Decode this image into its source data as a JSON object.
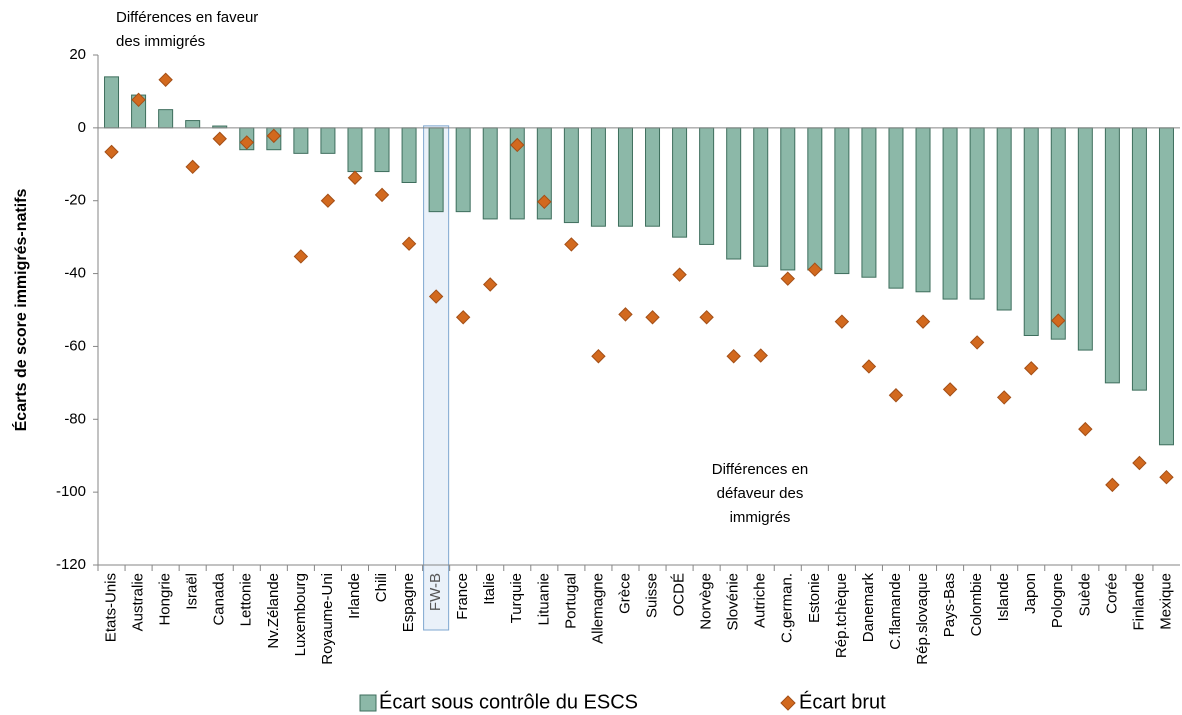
{
  "chart_data": {
    "type": "bar",
    "y_label": "Écarts de score immigrés-natifs",
    "annotations": [
      [
        "Différences en faveur",
        "des immigrés"
      ],
      [
        "Différences en",
        "défaveur des",
        "immigrés"
      ]
    ],
    "categories": [
      "Etats-Unis",
      "Australie",
      "Hongrie",
      "Israël",
      "Canada",
      "Lettonie",
      "Nv.Zélande",
      "Luxembourg",
      "Royaume-Uni",
      "Irlande",
      "Chili",
      "Espagne",
      "FW-B",
      "France",
      "Italie",
      "Turquie",
      "Lituanie",
      "Portugal",
      "Allemagne",
      "Grèce",
      "Suisse",
      "OCDÉ",
      "Norvège",
      "Slovénie",
      "Autriche",
      "C.german.",
      "Estonie",
      "Rép.tchèque",
      "Danemark",
      "C.flamande",
      "Rép.slovaque",
      "Pays-Bas",
      "Colombie",
      "Islande",
      "Japon",
      "Pologne",
      "Suède",
      "Corée",
      "Finlande",
      "Mexique"
    ],
    "highlight": "FW-B",
    "series": [
      {
        "name": "Écart sous contrôle du ESCS",
        "type": "bar",
        "color": "#8cb8a8",
        "stroke": "#3e6e5d",
        "values": [
          14,
          9,
          5,
          2,
          0.5,
          -6,
          -6,
          -7,
          -7,
          -12,
          -12,
          -15,
          -23,
          -23,
          -25,
          -25,
          -25,
          -26,
          -27,
          -27,
          -27,
          -30,
          -32,
          -36,
          -38,
          -39,
          -39,
          -40,
          -41,
          -44,
          -45,
          -47,
          -47,
          -50,
          -57,
          -58,
          -61,
          -70,
          -72,
          -87
        ]
      },
      {
        "name": "Écart brut",
        "type": "diamond",
        "color": "#d2691e",
        "stroke": "#a34f17",
        "values": [
          -6.6,
          7.7,
          13.2,
          -10.7,
          -3,
          -4,
          -2.2,
          -35.3,
          -20,
          -13.7,
          -18.4,
          -31.8,
          -46.3,
          -52,
          -43,
          -4.7,
          -20.3,
          -32,
          -62.7,
          -51.2,
          -52,
          -40.3,
          -52,
          -62.7,
          -62.5,
          -41.4,
          -38.9,
          -53.2,
          -65.5,
          -73.4,
          -53.2,
          -71.8,
          -58.9,
          -74,
          -66,
          -52.9,
          -82.7,
          -98,
          -92,
          -95.9
        ]
      }
    ],
    "ylim": [
      -120,
      20
    ],
    "yticks": [
      -120,
      -100,
      -80,
      -60,
      -40,
      -20,
      0,
      20
    ],
    "grid": false
  }
}
